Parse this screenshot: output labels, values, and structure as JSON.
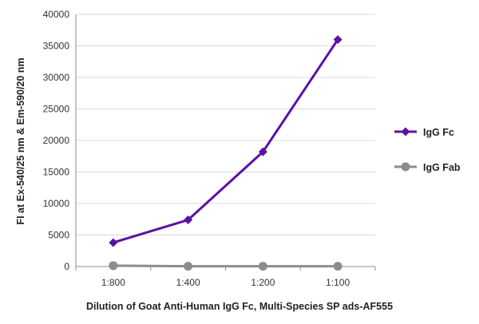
{
  "chart_data": {
    "type": "line",
    "categories": [
      "1:800",
      "1:400",
      "1:200",
      "1:100"
    ],
    "series": [
      {
        "name": "IgG Fc",
        "values": [
          3800,
          7400,
          18200,
          36000
        ],
        "color": "#5B11A4",
        "marker": "diamond"
      },
      {
        "name": "IgG Fab",
        "values": [
          150,
          50,
          50,
          50
        ],
        "color": "#8C8C8C",
        "marker": "circle"
      }
    ],
    "xlabel": "Dilution of Goat Anti-Human IgG Fc, Multi-Species SP ads-AF555",
    "ylabel": "FI at Ex-540/25 nm & Em-590/20 nm",
    "ylim": [
      0,
      40000
    ],
    "yticks": [
      0,
      5000,
      10000,
      15000,
      20000,
      25000,
      30000,
      35000,
      40000
    ],
    "grid": "horizontal",
    "legend_position": "right"
  }
}
